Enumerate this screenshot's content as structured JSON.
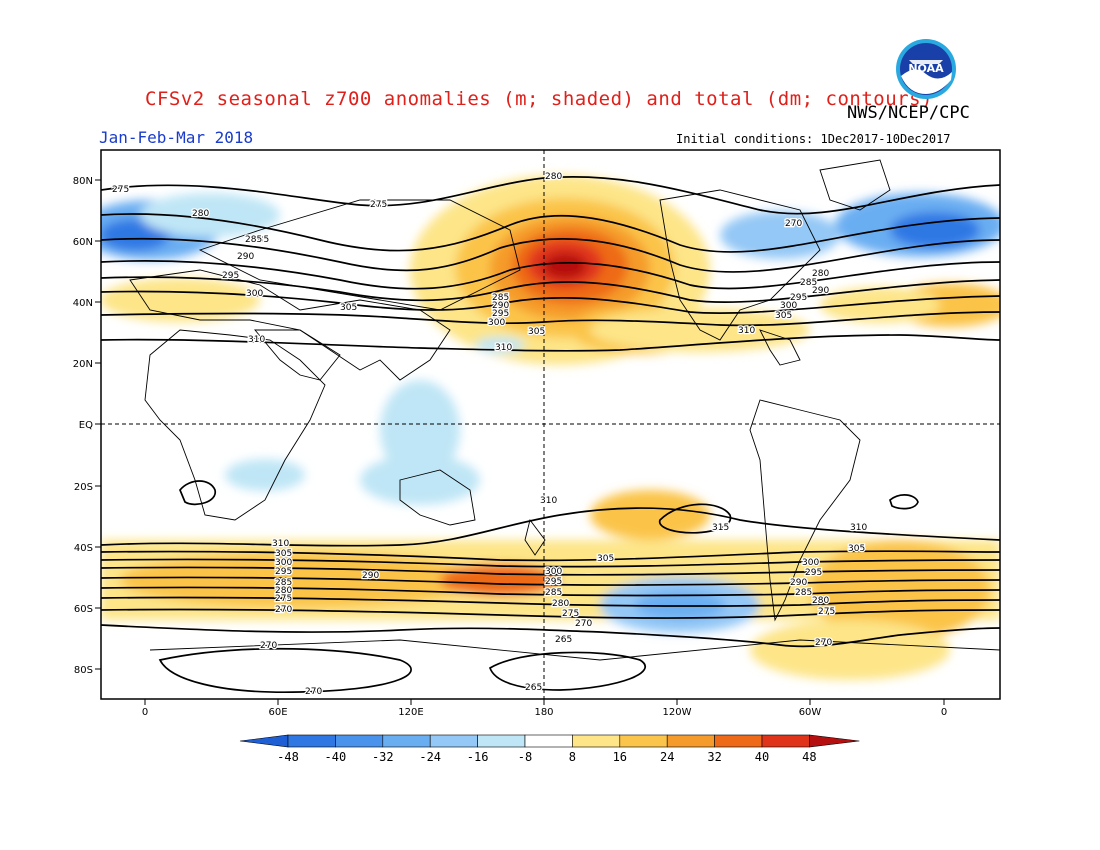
{
  "header": {
    "title": "CFSv2 seasonal z700 anomalies (m; shaded) and total (dm; contours)",
    "agency": "NWS/NCEP/CPC",
    "period": "Jan-Feb-Mar 2018",
    "initial_conditions": "Initial conditions: 1Dec2017-10Dec2017",
    "logo_text": "NOAA"
  },
  "map": {
    "projection": "cylindrical equidistant",
    "lon_ticks": [
      "0",
      "60E",
      "120E",
      "180",
      "120W",
      "60W",
      "0"
    ],
    "lat_ticks": [
      "80N",
      "60N",
      "40N",
      "20N",
      "EQ",
      "20S",
      "40S",
      "60S",
      "80S"
    ],
    "shading_units": "m",
    "contour_units": "dm"
  },
  "colorbar": {
    "labels": [
      "-48",
      "-40",
      "-32",
      "-24",
      "-16",
      "-8",
      "8",
      "16",
      "24",
      "32",
      "40",
      "48"
    ],
    "colors": [
      "#1e5fd6",
      "#2f78e4",
      "#4a93ec",
      "#6aaef2",
      "#94c8f6",
      "#bfe6f6",
      "#ffffff",
      "#fde588",
      "#fbc44a",
      "#f59b2c",
      "#ee6a19",
      "#e0341a",
      "#b5100f"
    ]
  },
  "contour_labels": {
    "northern": [
      "275",
      "280",
      "285",
      "290",
      "295",
      "300",
      "305",
      "310",
      "270",
      "280",
      "285",
      "290",
      "295",
      "300",
      "305",
      "310",
      "285",
      "290",
      "295",
      "300",
      "305",
      "310",
      "280",
      "270",
      "275",
      "285"
    ],
    "southern": [
      "310",
      "305",
      "300",
      "295",
      "285",
      "280",
      "275",
      "270",
      "290",
      "300",
      "295",
      "285",
      "280",
      "275",
      "270",
      "265",
      "265",
      "270",
      "270",
      "305",
      "310",
      "315",
      "310",
      "305",
      "300",
      "295",
      "290",
      "285",
      "280",
      "275",
      "270"
    ]
  }
}
